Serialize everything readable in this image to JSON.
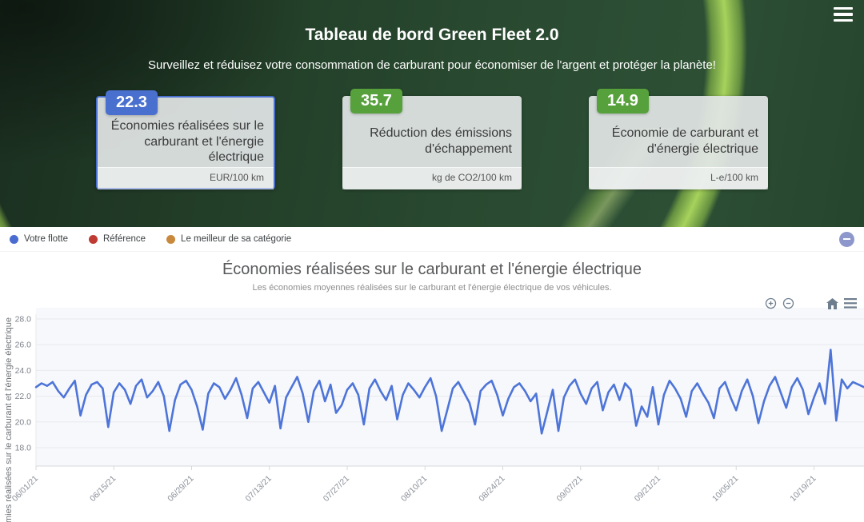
{
  "hero": {
    "title": "Tableau de bord Green Fleet 2.0",
    "subtitle": "Surveillez et réduisez votre consommation de carburant pour économiser de l'argent et protéger la planète!",
    "cards": [
      {
        "value": "22.3",
        "label": "Économies réalisées sur le carburant et l'énergie électrique",
        "unit": "EUR/100 km",
        "accent": "#4a70cf",
        "selected": true
      },
      {
        "value": "35.7",
        "label": "Réduction des émissions d'échappement",
        "unit": "kg de CO2/100 km",
        "accent": "#57a13c",
        "selected": false
      },
      {
        "value": "14.9",
        "label": "Économie de carburant et d'énergie électrique",
        "unit": "L-e/100 km",
        "accent": "#57a13c",
        "selected": false
      }
    ]
  },
  "legend": {
    "items": [
      {
        "label": "Votre flotte",
        "color": "#4a6bd0"
      },
      {
        "label": "Référence",
        "color": "#bf3a32"
      },
      {
        "label": "Le meilleur de sa catégorie",
        "color": "#c8893c"
      }
    ]
  },
  "toolbar_icons": [
    "zoom-in",
    "zoom-out",
    "home",
    "menu"
  ],
  "chart_data": {
    "type": "line",
    "title": "Économies réalisées sur le carburant et l'énergie électrique",
    "subtitle": "Les économies moyennes réalisées sur le carburant et l'énergie électrique de vos véhicules.",
    "ylabel": "Économies réalisées sur le carburant et l'énergie électrique",
    "series_name": "Votre flotte",
    "line_color": "#4d74d8",
    "grid": true,
    "legend_position": "top-bar",
    "start_date": "06/01/21",
    "x_tick_labels": [
      "06/01/21",
      "06/15/21",
      "06/29/21",
      "07/13/21",
      "07/27/21",
      "08/10/21",
      "08/24/21",
      "09/07/21",
      "09/21/21",
      "10/05/21",
      "10/19/21"
    ],
    "x_tick_day_indices": [
      0,
      14,
      28,
      42,
      56,
      70,
      84,
      98,
      112,
      126,
      140
    ],
    "y_tick_labels": [
      "28.0",
      "26.0",
      "24.0",
      "22.0",
      "20.0",
      "18.0"
    ],
    "y_ticks": [
      28,
      26,
      24,
      22,
      20,
      18
    ],
    "ylim": [
      16.5,
      28.9
    ],
    "values": [
      22.7,
      23.0,
      22.8,
      23.1,
      22.4,
      21.9,
      22.6,
      23.2,
      20.5,
      22.1,
      22.9,
      23.1,
      22.6,
      19.6,
      22.3,
      23.0,
      22.5,
      21.4,
      22.8,
      23.3,
      21.9,
      22.4,
      23.1,
      22.0,
      19.3,
      21.7,
      22.9,
      23.2,
      22.5,
      21.2,
      19.4,
      22.2,
      23.0,
      22.7,
      21.8,
      22.5,
      23.4,
      22.1,
      20.3,
      22.6,
      23.1,
      22.3,
      21.5,
      22.8,
      19.5,
      21.9,
      22.7,
      23.5,
      22.2,
      20.0,
      22.4,
      23.2,
      21.6,
      22.9,
      20.7,
      21.3,
      22.5,
      23.0,
      22.1,
      19.8,
      22.6,
      23.3,
      22.4,
      21.7,
      22.8,
      20.2,
      22.1,
      23.0,
      22.5,
      21.9,
      22.7,
      23.4,
      22.0,
      19.3,
      20.9,
      22.6,
      23.1,
      22.3,
      21.5,
      19.8,
      22.4,
      22.9,
      23.2,
      22.1,
      20.5,
      21.8,
      22.7,
      23.0,
      22.4,
      21.6,
      22.2,
      19.1,
      20.8,
      22.5,
      19.3,
      21.9,
      22.8,
      23.3,
      22.2,
      21.4,
      22.6,
      23.1,
      20.9,
      22.3,
      22.9,
      21.7,
      23.0,
      22.5,
      19.7,
      21.2,
      20.4,
      22.7,
      19.8,
      22.1,
      23.2,
      22.6,
      21.8,
      20.4,
      22.4,
      23.0,
      22.2,
      21.5,
      20.3,
      22.6,
      23.1,
      21.9,
      20.9,
      22.4,
      23.3,
      22.0,
      19.9,
      21.6,
      22.8,
      23.5,
      22.3,
      21.1,
      22.7,
      23.4,
      22.5,
      20.6,
      21.9,
      23.0,
      21.4,
      25.6,
      20.1,
      23.3,
      22.6,
      23.1,
      22.9,
      22.7
    ]
  }
}
